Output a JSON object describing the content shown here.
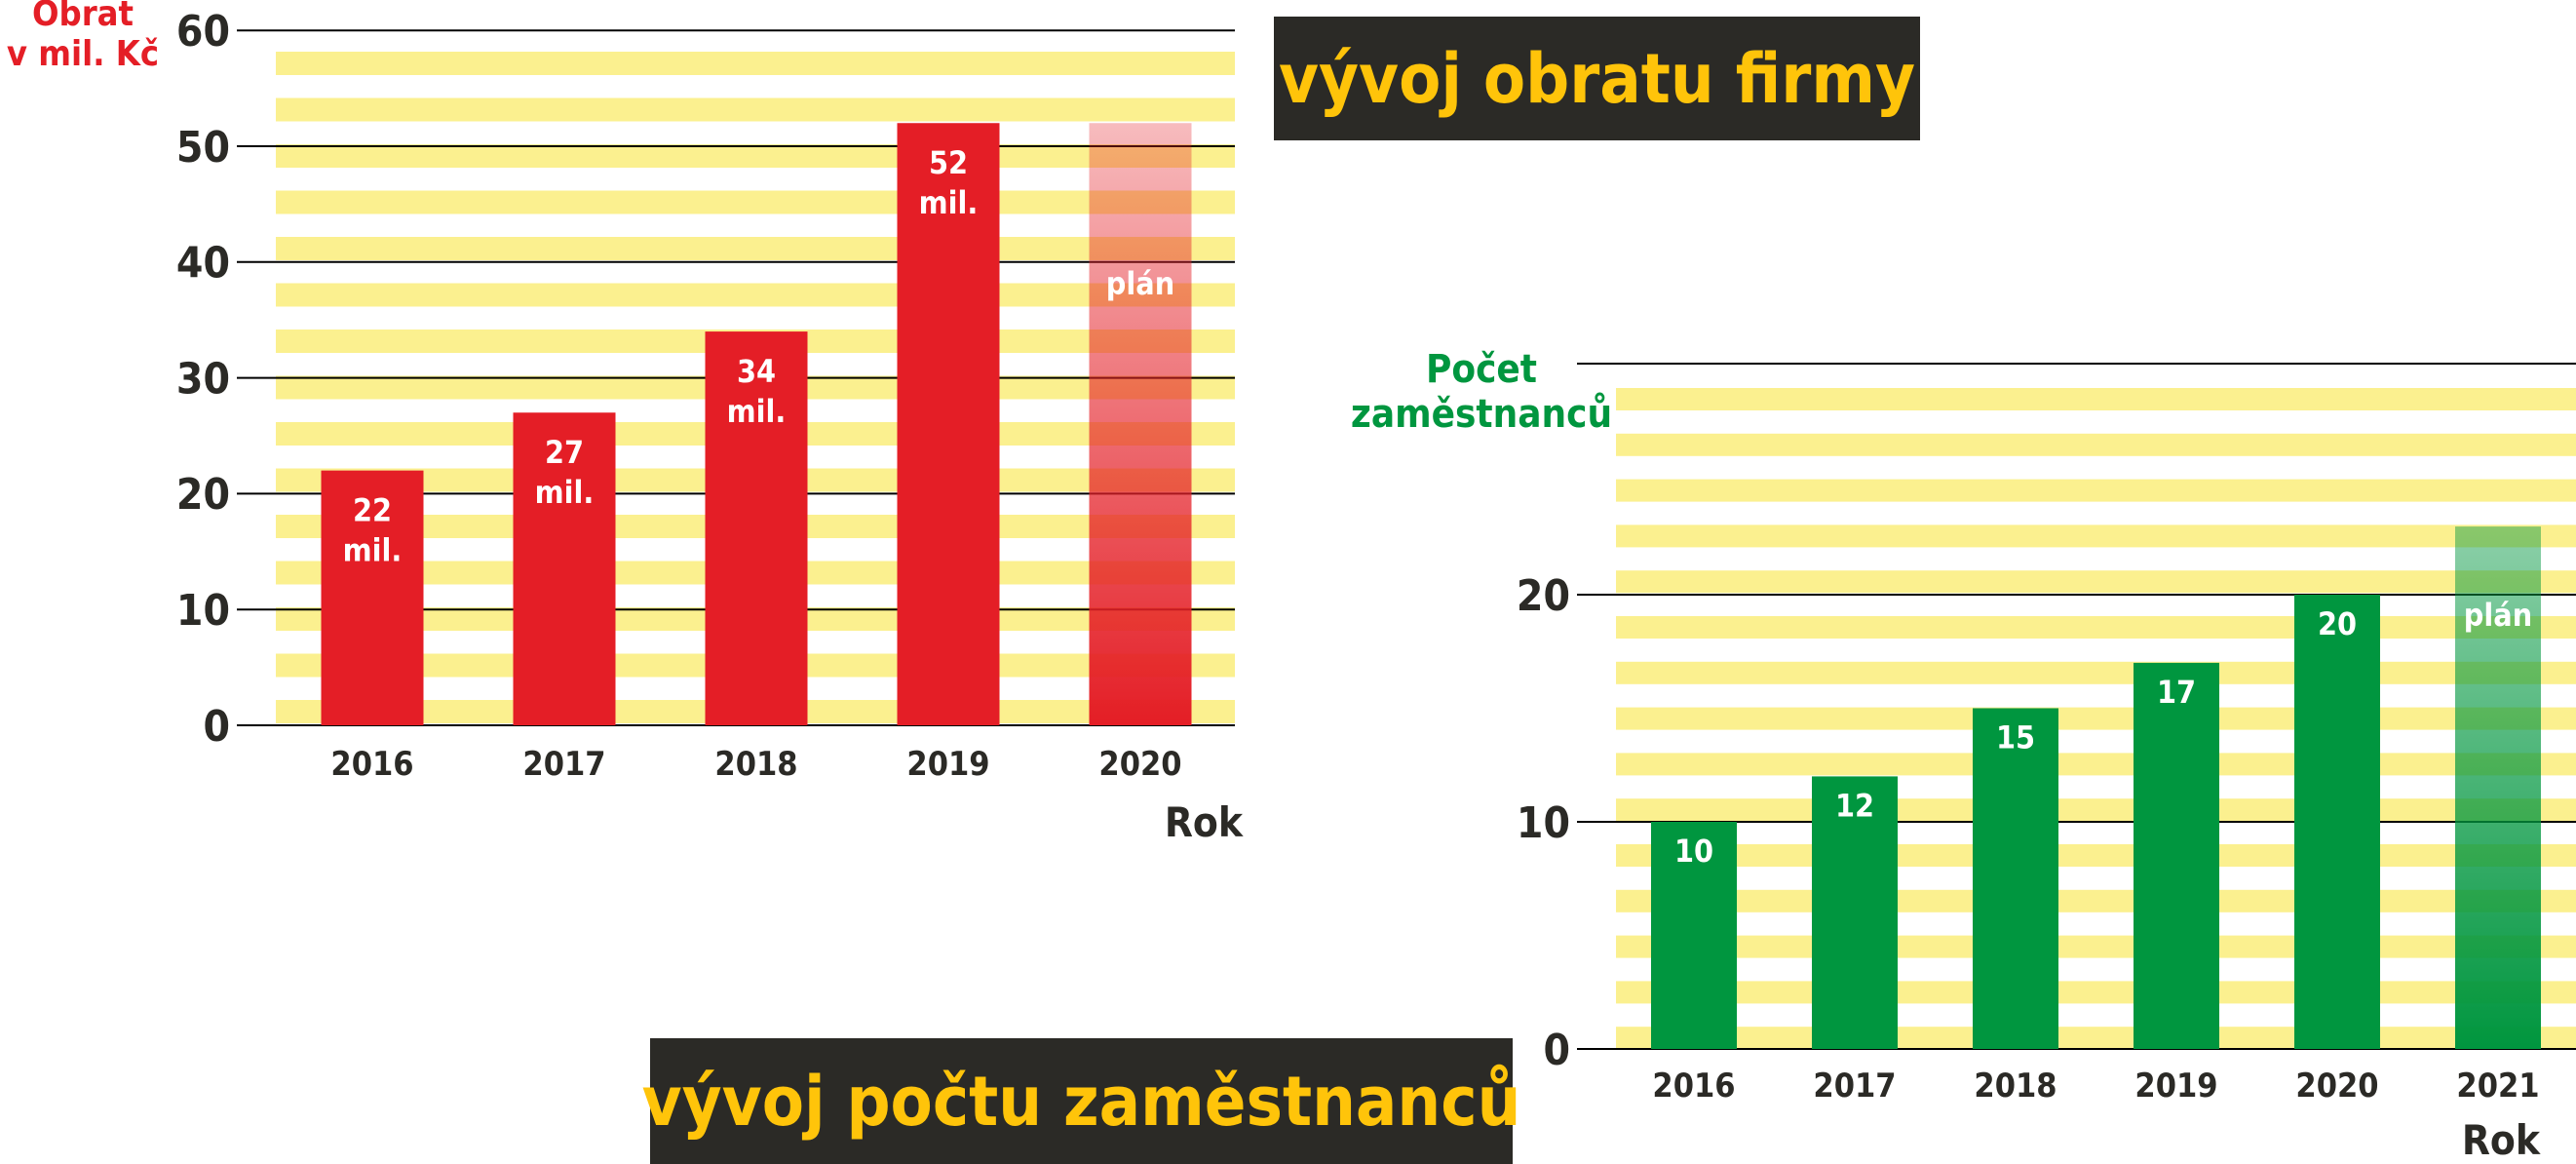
{
  "colors": {
    "stripe": "#fbf08f",
    "red": "#e41e26",
    "green": "#00963f",
    "axis": "#000000",
    "title_bg": "#2b2a26",
    "title_fg": "#ffc40a"
  },
  "chart_data": [
    {
      "type": "bar",
      "title": "vývoj obratu firmy",
      "ylabel_lines": [
        "Obrat",
        "v mil. Kč"
      ],
      "xlabel": "Rok",
      "categories": [
        "2016",
        "2017",
        "2018",
        "2019",
        "2020"
      ],
      "values": [
        22,
        27,
        34,
        52,
        52
      ],
      "bar_labels": [
        [
          "22",
          "mil."
        ],
        [
          "27",
          "mil."
        ],
        [
          "34",
          "mil."
        ],
        [
          "52",
          "mil."
        ],
        [
          "plán"
        ]
      ],
      "planned_index": 4,
      "yticks": [
        0,
        10,
        20,
        30,
        40,
        50,
        60
      ],
      "ylim": [
        0,
        60
      ],
      "grid": true
    },
    {
      "type": "bar",
      "title": "vývoj počtu zaměstnanců",
      "ylabel_lines": [
        "Počet",
        "zaměstnanců"
      ],
      "xlabel": "Rok",
      "categories": [
        "2016",
        "2017",
        "2018",
        "2019",
        "2020",
        "2021"
      ],
      "values": [
        10,
        12,
        15,
        17,
        20,
        23
      ],
      "bar_labels": [
        [
          "10"
        ],
        [
          "12"
        ],
        [
          "15"
        ],
        [
          "17"
        ],
        [
          "20"
        ],
        [
          "plán"
        ]
      ],
      "planned_index": 5,
      "yticks": [
        0,
        10,
        20
      ],
      "ylim": [
        0,
        30
      ],
      "grid": true
    }
  ]
}
